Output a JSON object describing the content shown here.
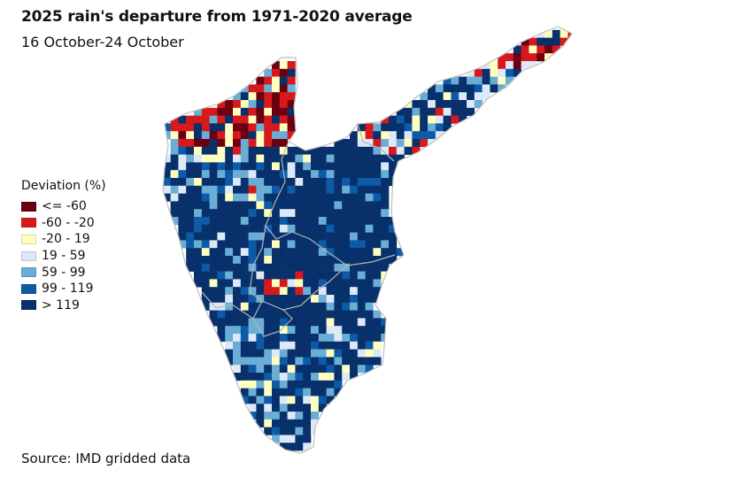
{
  "header": {
    "title": "2025 rain's departure from 1971-2020 average",
    "subtitle": "16 October-24 October"
  },
  "legend": {
    "title": "Deviation (%)",
    "items": [
      {
        "label": "<= -60",
        "color": "#6b0010"
      },
      {
        "label": "-60 - -20",
        "color": "#d7191c"
      },
      {
        "label": "-20 - 19",
        "color": "#ffffbf"
      },
      {
        "label": "19 - 59",
        "color": "#dde9f8"
      },
      {
        "label": "59 - 99",
        "color": "#6aaed6"
      },
      {
        "label": "99 - 119",
        "color": "#0d5aa7"
      },
      {
        "label": "> 119",
        "color": "#08306b"
      }
    ]
  },
  "source": "Source: IMD gridded data"
}
